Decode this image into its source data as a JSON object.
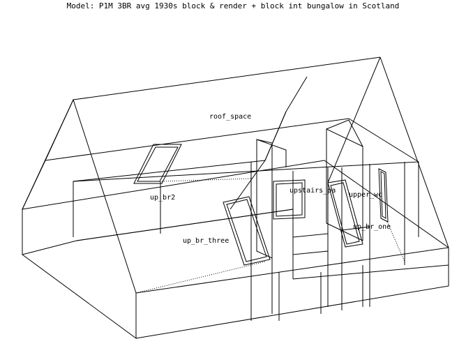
{
  "title": "Model: P1M 3BR avg 1930s block & render + block int bungalow in Scotland",
  "zones": {
    "roof_space": "roof_space",
    "up_br2": "up_br2",
    "upstairs_passage": "upstairs_pa",
    "upper_wc": "upper_wc",
    "up_br_one": "up_br_one",
    "up_br_three": "up_br_three"
  },
  "colors": {
    "line": "#000000",
    "background": "#ffffff"
  }
}
